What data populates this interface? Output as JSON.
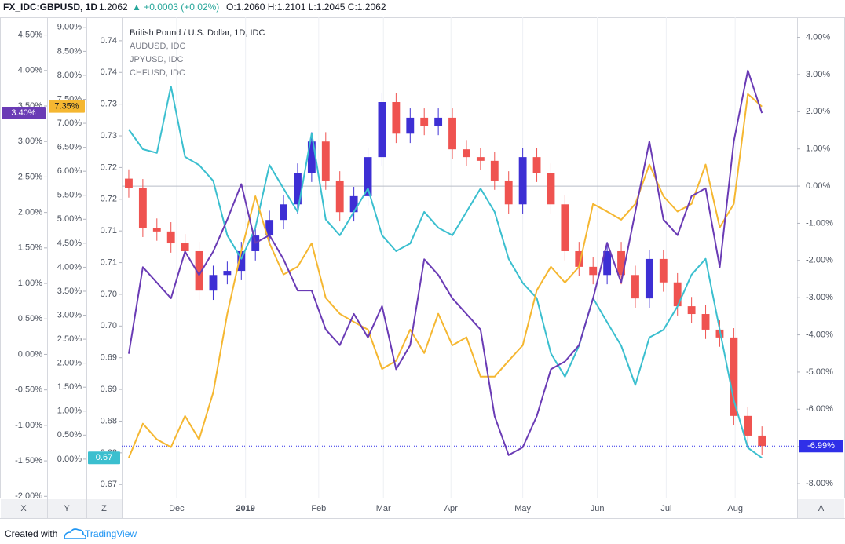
{
  "header": {
    "symbol": "FX_IDC:GBPUSD, 1D",
    "price": "1.2062",
    "change": "▲ +0.0003 (+0.02%)",
    "ohlc": "O:1.2060 H:1.2101 L:1.2045 C:1.2062"
  },
  "footer": {
    "created": "Created with",
    "brand": "TradingView"
  },
  "chart_data": {
    "type": "candlestick",
    "xlim": [
      -0.5,
      47.5
    ],
    "xticks": [
      {
        "value": 3.4,
        "label": "Dec"
      },
      {
        "value": 8.3,
        "label": "2019"
      },
      {
        "value": 13.5,
        "label": "Feb"
      },
      {
        "value": 18.1,
        "label": "Mar"
      },
      {
        "value": 22.9,
        "label": "Apr"
      },
      {
        "value": 28.0,
        "label": "May"
      },
      {
        "value": 33.3,
        "label": "Jun"
      },
      {
        "value": 38.2,
        "label": "Jul"
      },
      {
        "value": 43.1,
        "label": "Aug"
      }
    ],
    "grid": true,
    "axes": [
      {
        "id": "X",
        "lim": [
          -2.03,
          4.75
        ],
        "ticks": [
          {
            "value": 4.5,
            "label": "4.50%"
          },
          {
            "value": 4,
            "label": "4.00%"
          },
          {
            "value": 3.5,
            "label": "3.50%"
          },
          {
            "value": 3,
            "label": "3.00%"
          },
          {
            "value": 2.5,
            "label": "2.50%"
          },
          {
            "value": 2,
            "label": "2.00%"
          },
          {
            "value": 1.5,
            "label": "1.50%"
          },
          {
            "value": 1,
            "label": "1.00%"
          },
          {
            "value": 0.5,
            "label": "0.50%"
          },
          {
            "value": 0,
            "label": "0.00%"
          },
          {
            "value": -0.5,
            "label": "-0.50%"
          },
          {
            "value": -1,
            "label": "-1.00%"
          },
          {
            "value": -1.5,
            "label": "-1.50%"
          },
          {
            "value": -2,
            "label": "-2.00%"
          }
        ]
      },
      {
        "id": "Y",
        "lim": [
          -0.82,
          9.21
        ],
        "ticks": [
          {
            "value": 9,
            "label": "9.00%"
          },
          {
            "value": 8.5,
            "label": "8.50%"
          },
          {
            "value": 8,
            "label": "8.00%"
          },
          {
            "value": 7.5,
            "label": "7.50%"
          },
          {
            "value": 7,
            "label": "7.00%"
          },
          {
            "value": 6.5,
            "label": "6.50%"
          },
          {
            "value": 6,
            "label": "6.00%"
          },
          {
            "value": 5.5,
            "label": "5.50%"
          },
          {
            "value": 5,
            "label": "5.00%"
          },
          {
            "value": 4.5,
            "label": "4.50%"
          },
          {
            "value": 4,
            "label": "4.00%"
          },
          {
            "value": 3.5,
            "label": "3.50%"
          },
          {
            "value": 3,
            "label": "3.00%"
          },
          {
            "value": 2.5,
            "label": "2.50%"
          },
          {
            "value": 2,
            "label": "2.00%"
          },
          {
            "value": 1.5,
            "label": "1.50%"
          },
          {
            "value": 1,
            "label": "1.00%"
          },
          {
            "value": 0.5,
            "label": "0.50%"
          },
          {
            "value": 0,
            "label": "0.00%"
          }
        ]
      },
      {
        "id": "Z",
        "lim": [
          0.6678,
          0.7437
        ],
        "ticks": [
          {
            "value": 0.74,
            "label": "0.74"
          },
          {
            "value": 0.735,
            "label": "0.74"
          },
          0.73,
          {
            "value": 0.725,
            "label": "0.73"
          },
          0.72,
          {
            "value": 0.715,
            "label": "0.72"
          },
          0.71,
          {
            "value": 0.705,
            "label": "0.71"
          },
          {
            "value": 0.7,
            "label": "0.70"
          },
          {
            "value": 0.695,
            "label": "0.70"
          },
          0.69,
          {
            "value": 0.685,
            "label": "0.69"
          },
          0.68,
          {
            "value": 0.675,
            "label": "0.68"
          },
          0.67
        ]
      },
      {
        "id": "A",
        "lim": [
          -8.4,
          4.54
        ],
        "baseline": 0,
        "ticks": [
          {
            "value": 4,
            "label": "4.00%"
          },
          {
            "value": 3,
            "label": "3.00%"
          },
          {
            "value": 2,
            "label": "2.00%"
          },
          {
            "value": 1,
            "label": "1.00%"
          },
          {
            "value": 0,
            "label": "0.00%"
          },
          {
            "value": -1,
            "label": "-1.00%"
          },
          {
            "value": -2,
            "label": "-2.00%"
          },
          {
            "value": -3,
            "label": "-3.00%"
          },
          {
            "value": -4,
            "label": "-4.00%"
          },
          {
            "value": -5,
            "label": "-5.00%"
          },
          {
            "value": -6,
            "label": "-6.00%"
          },
          {
            "value": -7,
            "label": "-7.00%"
          },
          {
            "value": -8,
            "label": "-8.00%"
          }
        ]
      }
    ],
    "series": [
      {
        "name": "British Pound / U.S. Dollar, 1D, IDC",
        "type": "candlestick",
        "axis": "A",
        "up_color": "#3d2fd4",
        "down_color": "#ef5350",
        "color": "#2f2fe8",
        "last_label": "-6.99%",
        "open": [
          0.2,
          -0.06,
          -1.12,
          -1.22,
          -1.54,
          -1.75,
          -2.81,
          -2.39,
          -2.28,
          -1.75,
          -1.33,
          -0.91,
          -0.49,
          0.36,
          1.2,
          0.15,
          -0.7,
          -0.27,
          0.78,
          2.26,
          1.41,
          1.84,
          1.62,
          1.84,
          0.99,
          0.78,
          0.68,
          0.15,
          -0.49,
          0.78,
          0.36,
          -0.49,
          -1.75,
          -2.17,
          -2.39,
          -1.75,
          -2.39,
          -3.02,
          -1.96,
          -2.59,
          -3.23,
          -3.44,
          -3.86,
          -4.07,
          -6.18,
          -6.71
        ],
        "high": [
          0.45,
          0.19,
          -0.87,
          -0.97,
          -1.29,
          -1.5,
          -2.14,
          -2.03,
          -1.5,
          -1.08,
          -0.66,
          -0.24,
          0.61,
          1.45,
          1.45,
          0.4,
          -0.02,
          1.03,
          2.51,
          2.51,
          2.09,
          2.09,
          2.09,
          2.09,
          1.24,
          1.03,
          0.93,
          0.4,
          1.03,
          1.03,
          0.61,
          -0.24,
          -1.5,
          -1.92,
          -1.5,
          -1.5,
          -2.14,
          -1.71,
          -1.71,
          -2.34,
          -2.98,
          -3.19,
          -3.61,
          -3.82,
          -5.93,
          -6.46
        ],
        "low": [
          -0.31,
          -1.37,
          -1.47,
          -1.79,
          -2.0,
          -3.06,
          -3.06,
          -2.64,
          -2.53,
          -2.0,
          -1.58,
          -1.16,
          -0.74,
          0.11,
          -0.1,
          -0.95,
          -0.95,
          -0.52,
          0.53,
          1.16,
          1.16,
          1.37,
          1.37,
          0.74,
          0.53,
          0.43,
          -0.1,
          -0.74,
          -0.74,
          0.11,
          -0.74,
          -2.0,
          -2.42,
          -2.64,
          -2.64,
          -2.64,
          -3.27,
          -3.27,
          -2.84,
          -3.48,
          -3.69,
          -4.11,
          -4.32,
          -6.43,
          -6.96,
          -7.24
        ],
        "close": [
          -0.06,
          -1.12,
          -1.22,
          -1.54,
          -1.75,
          -2.81,
          -2.39,
          -2.28,
          -1.75,
          -1.33,
          -0.91,
          -0.49,
          0.36,
          1.2,
          0.15,
          -0.7,
          -0.27,
          0.78,
          2.26,
          1.41,
          1.84,
          1.62,
          1.84,
          0.99,
          0.78,
          0.68,
          0.15,
          -0.49,
          0.78,
          0.36,
          -0.49,
          -1.75,
          -2.17,
          -2.39,
          -1.75,
          -2.39,
          -3.02,
          -1.96,
          -2.59,
          -3.23,
          -3.44,
          -3.86,
          -4.07,
          -6.18,
          -6.71,
          -6.99
        ]
      },
      {
        "name": "AUDUSD, IDC",
        "type": "line",
        "axis": "Z",
        "color": "#3bbfcf",
        "last_label": "0.67",
        "values": [
          0.726,
          0.7229,
          0.7223,
          0.7328,
          0.7217,
          0.7204,
          0.7179,
          0.7093,
          0.7056,
          0.7105,
          0.7204,
          0.7167,
          0.713,
          0.7254,
          0.7118,
          0.7093,
          0.713,
          0.7167,
          0.7093,
          0.7068,
          0.708,
          0.713,
          0.7105,
          0.7093,
          0.713,
          0.7167,
          0.713,
          0.7056,
          0.7018,
          0.6994,
          0.6907,
          0.687,
          0.6919,
          0.6994,
          0.6956,
          0.6919,
          0.6857,
          0.6932,
          0.6944,
          0.6981,
          0.7031,
          0.7056,
          0.6944,
          0.6833,
          0.6758,
          0.6742
        ]
      },
      {
        "name": "JPYUSD, IDC",
        "type": "line",
        "axis": "Y",
        "color": "#f5b731",
        "last_label": "7.35%",
        "values": [
          0.03,
          0.74,
          0.41,
          0.25,
          0.9,
          0.41,
          1.39,
          3.03,
          4.34,
          5.48,
          4.5,
          3.85,
          4.01,
          4.5,
          3.36,
          3.03,
          2.86,
          2.7,
          1.88,
          2.05,
          2.7,
          2.21,
          3.03,
          2.37,
          2.54,
          1.72,
          1.72,
          2.05,
          2.37,
          3.52,
          4.01,
          3.68,
          4.01,
          5.32,
          5.16,
          4.99,
          5.32,
          6.14,
          5.48,
          5.16,
          5.32,
          6.14,
          4.83,
          5.32,
          7.61,
          7.35
        ]
      },
      {
        "name": "CHFUSD, IDC",
        "type": "line",
        "axis": "X",
        "color": "#6a3bb5",
        "last_label": "3.40%",
        "values": [
          0.01,
          1.23,
          1.01,
          0.79,
          1.45,
          1.12,
          1.45,
          1.9,
          2.4,
          1.57,
          1.68,
          1.34,
          0.9,
          0.9,
          0.35,
          0.13,
          0.57,
          0.24,
          0.68,
          -0.21,
          0.13,
          1.34,
          1.12,
          0.79,
          0.57,
          0.35,
          -0.87,
          -1.42,
          -1.31,
          -0.87,
          -0.21,
          -0.1,
          0.13,
          0.79,
          1.57,
          1.01,
          2.01,
          3.0,
          1.9,
          1.68,
          2.23,
          2.34,
          1.23,
          3.0,
          4.0,
          3.4
        ]
      }
    ]
  }
}
